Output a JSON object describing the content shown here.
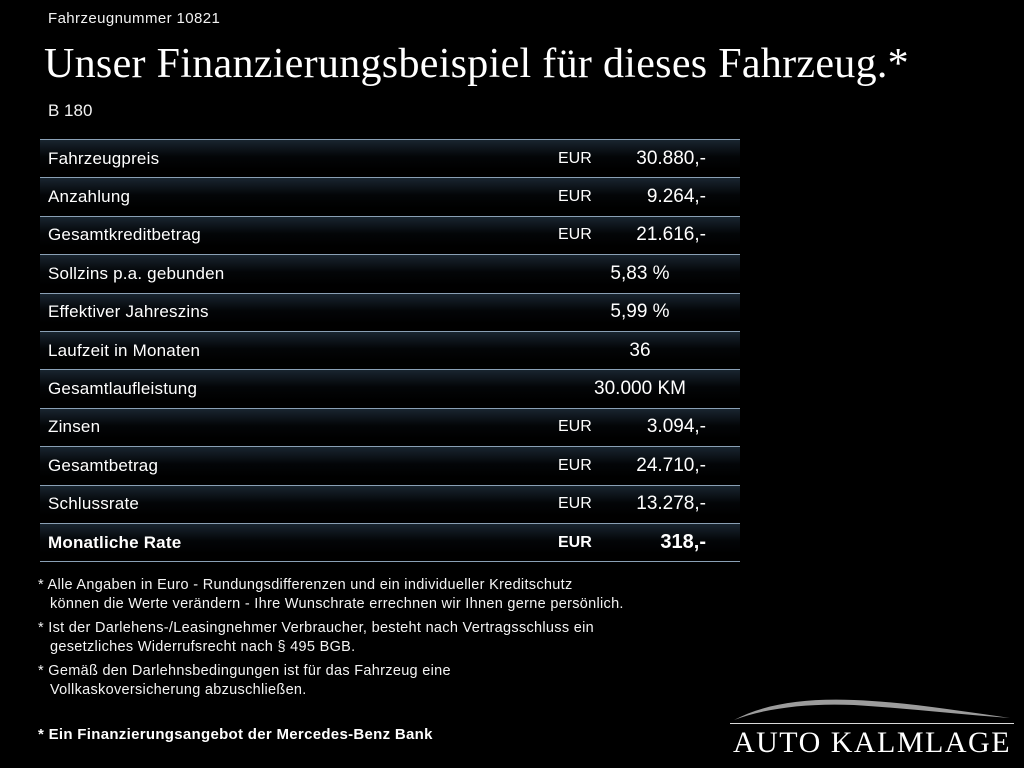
{
  "header": {
    "vehicle_number": "Fahrzeugnummer 10821",
    "title": "Unser Finanzierungsbeispiel für dieses Fahrzeug.*",
    "model": "B 180"
  },
  "table": {
    "rows": [
      {
        "label": "Fahrzeugpreis",
        "currency": "EUR",
        "value": "30.880,-",
        "bold": false
      },
      {
        "label": "Anzahlung",
        "currency": "EUR",
        "value": "9.264,-",
        "bold": false
      },
      {
        "label": "Gesamtkreditbetrag",
        "currency": "EUR",
        "value": "21.616,-",
        "bold": false
      },
      {
        "label": "Sollzins p.a. gebunden",
        "currency": "",
        "value": "5,83 %",
        "bold": false
      },
      {
        "label": "Effektiver Jahreszins",
        "currency": "",
        "value": "5,99 %",
        "bold": false
      },
      {
        "label": "Laufzeit in Monaten",
        "currency": "",
        "value": "36",
        "bold": false
      },
      {
        "label": "Gesamtlaufleistung",
        "currency": "",
        "value": "30.000 KM",
        "bold": false
      },
      {
        "label": "Zinsen",
        "currency": "EUR",
        "value": "3.094,-",
        "bold": false
      },
      {
        "label": "Gesamtbetrag",
        "currency": "EUR",
        "value": "24.710,-",
        "bold": false
      },
      {
        "label": "Schlussrate",
        "currency": "EUR",
        "value": "13.278,-",
        "bold": false
      },
      {
        "label": "Monatliche Rate",
        "currency": "EUR",
        "value": "318,-",
        "bold": true
      }
    ]
  },
  "footnotes": [
    [
      "* Alle Angaben in Euro - Rundungsdifferenzen und ein individueller Kreditschutz",
      "können die Werte verändern - Ihre Wunschrate errechnen wir Ihnen gerne persönlich."
    ],
    [
      "* Ist der Darlehens-/Leasingnehmer Verbraucher, besteht nach Vertragsschluss ein",
      "gesetzliches Widerrufsrecht nach § 495 BGB."
    ],
    [
      "* Gemäß den Darlehnsbedingungen ist für das Fahrzeug eine",
      "Vollkaskoversicherung abzuschließen."
    ]
  ],
  "footer": {
    "offer": "* Ein Finanzierungsangebot der Mercedes-Benz Bank",
    "logo_text": "AUTO KALMLAGE"
  },
  "colors": {
    "background": "#000000",
    "text": "#ffffff",
    "table_line": "#8aa0b5"
  }
}
